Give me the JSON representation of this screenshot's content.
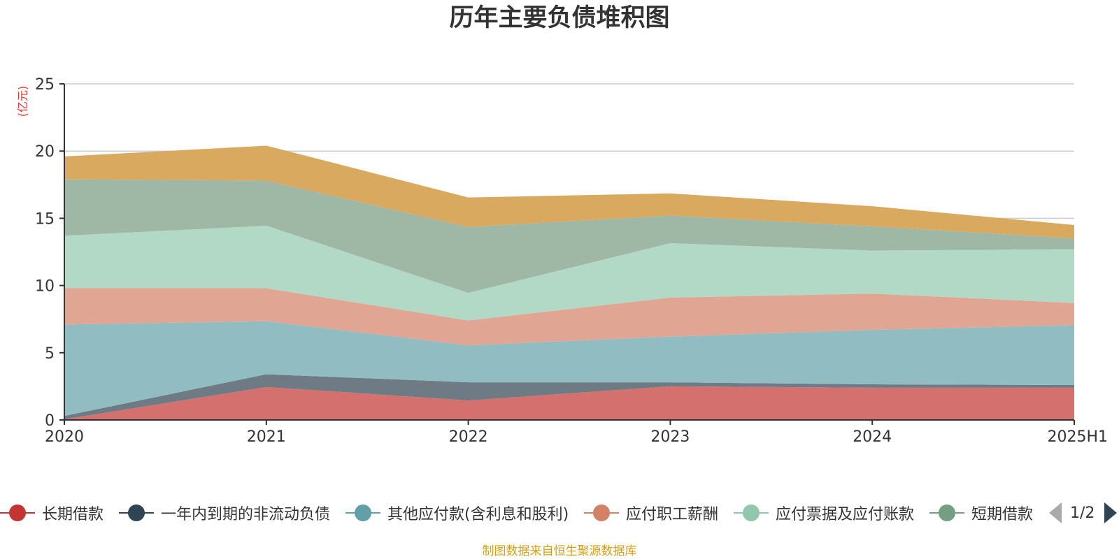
{
  "source_note": "制图数据来自恒生聚源数据库",
  "legend_pager": {
    "text": "1/2"
  },
  "chart_data": {
    "type": "area",
    "stacked": true,
    "title": "历年主要负债堆积图",
    "ylabel": "(亿元)",
    "ylim": [
      0,
      25
    ],
    "yticks": [
      0,
      5,
      10,
      15,
      20,
      25
    ],
    "grid": true,
    "legend_position": "bottom",
    "categories": [
      "2020",
      "2021",
      "2022",
      "2023",
      "2024",
      "2025H1"
    ],
    "series": [
      {
        "name": "长期借款",
        "legend_color": "#c23531",
        "fill": "#d4706d",
        "values": [
          0.05,
          2.45,
          1.45,
          2.5,
          2.4,
          2.4
        ]
      },
      {
        "name": "一年内到期的非流动负债",
        "legend_color": "#2f4554",
        "fill": "#6e7b85",
        "values": [
          0.25,
          0.95,
          1.35,
          0.3,
          0.25,
          0.2
        ]
      },
      {
        "name": "其他应付款(含利息和股利)",
        "legend_color": "#61a0a8",
        "fill": "#90bcc2",
        "values": [
          6.8,
          3.95,
          2.75,
          3.4,
          4.05,
          4.45
        ]
      },
      {
        "name": "应付职工薪酬",
        "legend_color": "#d48265",
        "fill": "#e1a693",
        "values": [
          2.7,
          2.45,
          1.85,
          2.9,
          2.7,
          1.65
        ]
      },
      {
        "name": "应付票据及应付账款",
        "legend_color": "#91c7ae",
        "fill": "#b2d8c6",
        "values": [
          3.9,
          4.65,
          2.05,
          4.05,
          3.2,
          4.0
        ]
      },
      {
        "name": "短期借款",
        "legend_color": "#749f83",
        "fill": "#9eb8a5",
        "values": [
          4.2,
          3.35,
          4.9,
          2.05,
          1.8,
          0.8
        ]
      },
      {
        "name": "",
        "legend_color": "#ca8622",
        "fill": "#d8a95f",
        "values": [
          1.7,
          2.6,
          2.2,
          1.65,
          1.5,
          1.0
        ]
      }
    ]
  }
}
